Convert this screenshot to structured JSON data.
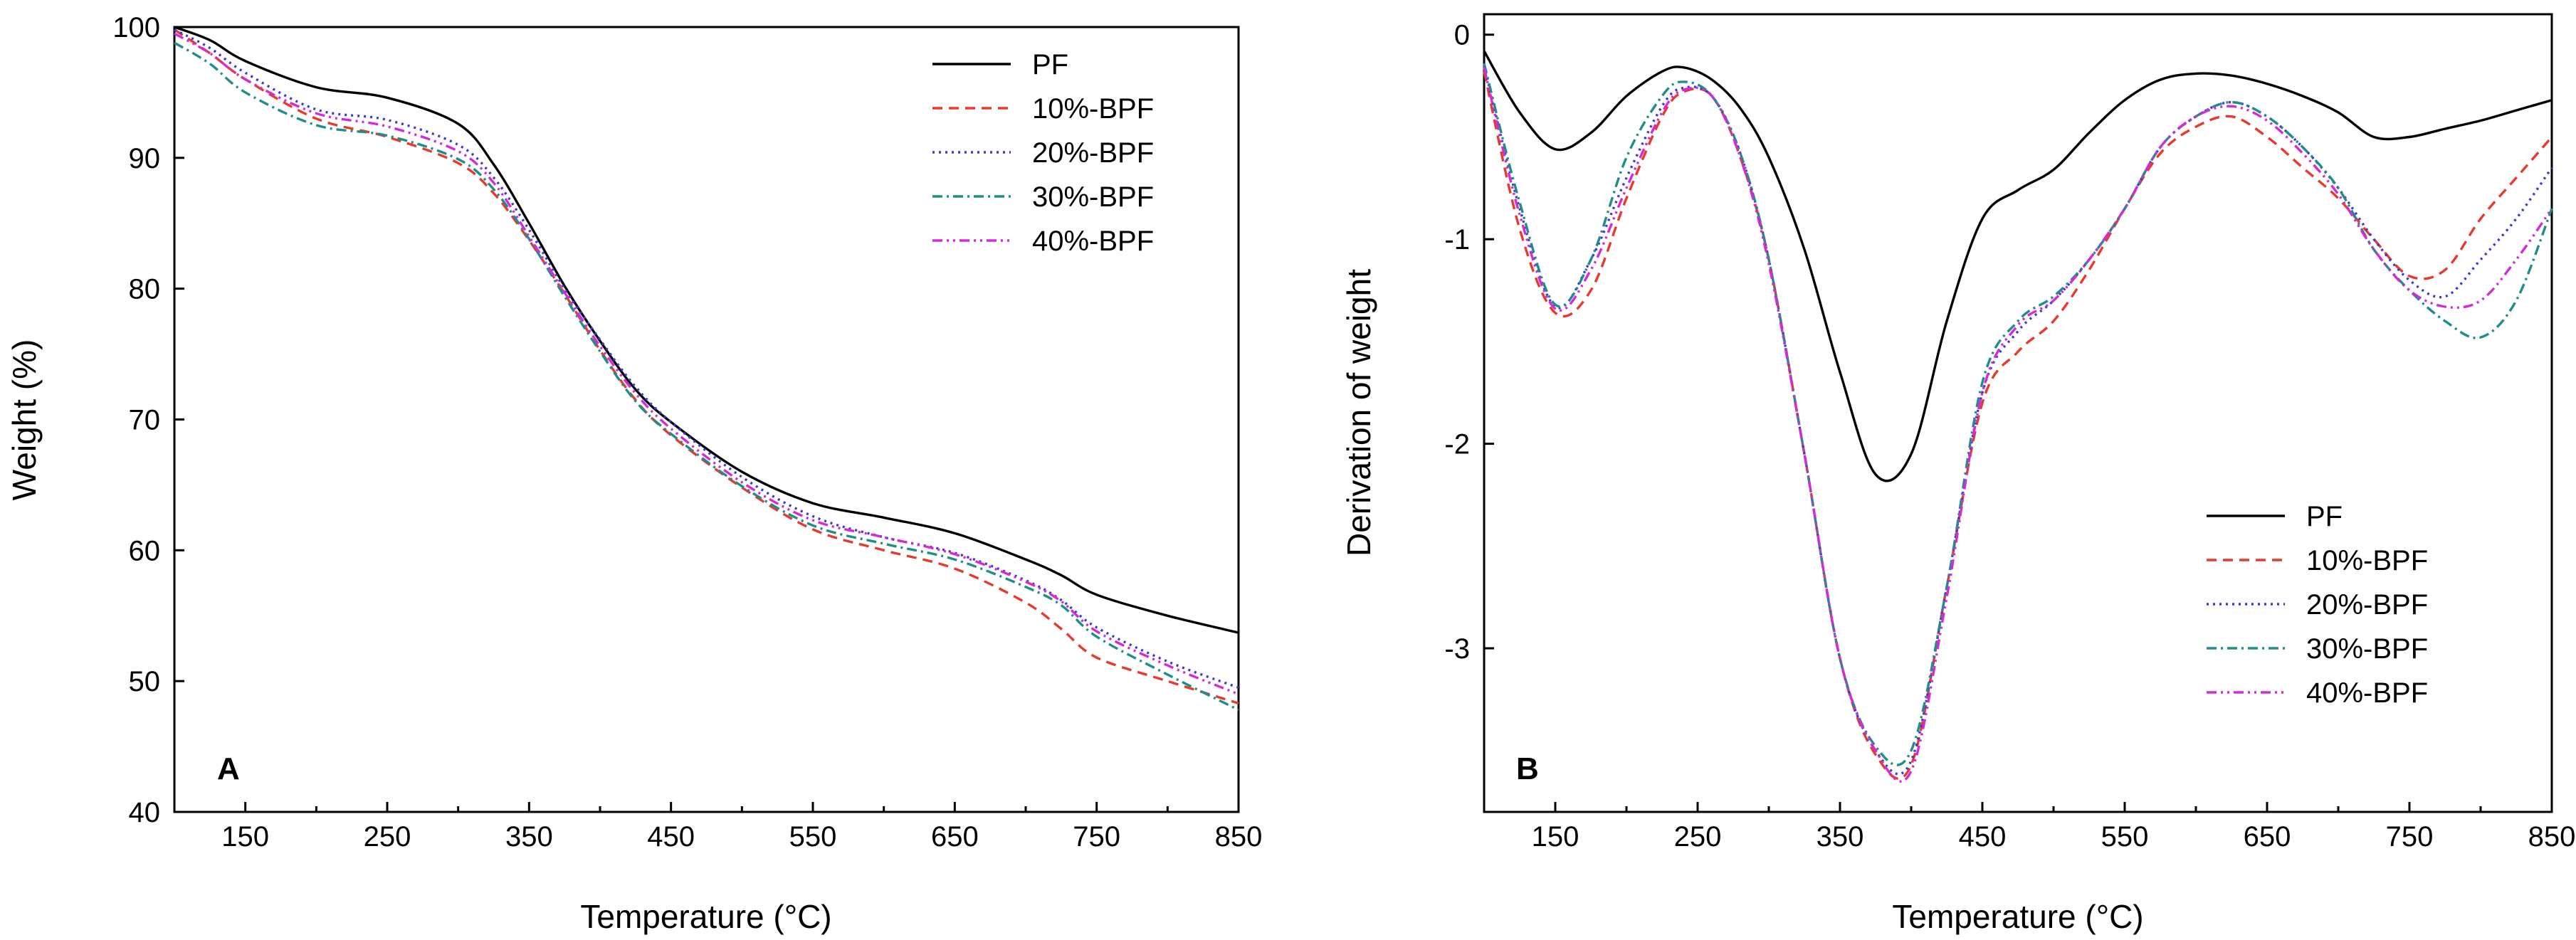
{
  "chart_data": [
    {
      "type": "line",
      "panel": "A",
      "title": "",
      "xlabel": "Temperature (°C)",
      "ylabel": "Weight (%)",
      "xlim": [
        100,
        850
      ],
      "ylim": [
        40,
        100
      ],
      "xticks": [
        150,
        250,
        350,
        450,
        550,
        650,
        750,
        850
      ],
      "yticks": [
        40,
        50,
        60,
        70,
        80,
        90,
        100
      ],
      "legend_position": "top-right",
      "x": [
        100,
        125,
        150,
        200,
        250,
        300,
        325,
        350,
        375,
        400,
        425,
        450,
        500,
        550,
        600,
        650,
        700,
        725,
        750,
        800,
        850
      ],
      "series": [
        {
          "name": "PF",
          "color": "#000000",
          "dash": "solid",
          "values": [
            100,
            99.0,
            97.4,
            95.4,
            94.6,
            92.6,
            89.5,
            85.0,
            80.2,
            76.0,
            72.3,
            69.8,
            66.0,
            63.6,
            62.5,
            61.3,
            59.3,
            58.1,
            56.6,
            55.0,
            53.7
          ]
        },
        {
          "name": "10%-BPF",
          "color": "#e8392c",
          "dash": "dashed",
          "values": [
            99.8,
            98.0,
            96.0,
            93.0,
            91.6,
            89.6,
            87.3,
            83.7,
            79.6,
            75.3,
            71.5,
            68.8,
            64.8,
            61.6,
            60.0,
            58.6,
            56.0,
            54.0,
            51.8,
            50.0,
            48.3
          ]
        },
        {
          "name": "20%-BPF",
          "color": "#3a3ad8",
          "dash": "dotted",
          "values": [
            99.8,
            98.4,
            96.5,
            93.7,
            92.9,
            91.0,
            88.5,
            84.5,
            80.0,
            76.1,
            72.5,
            69.8,
            65.6,
            62.6,
            61.0,
            59.8,
            57.7,
            56.2,
            54.1,
            51.5,
            49.5
          ]
        },
        {
          "name": "30%-BPF",
          "color": "#1f8e8a",
          "dash": "dashdot",
          "values": [
            98.8,
            97.2,
            95.0,
            92.5,
            91.7,
            89.9,
            87.6,
            83.8,
            79.4,
            75.2,
            71.4,
            68.9,
            64.9,
            61.9,
            60.5,
            59.3,
            57.2,
            55.8,
            53.4,
            50.5,
            47.8
          ]
        },
        {
          "name": "40%-BPF",
          "color": "#d62ad6",
          "dash": "dashdotdot",
          "values": [
            99.5,
            98.0,
            96.0,
            93.4,
            92.4,
            90.5,
            88.1,
            84.0,
            79.7,
            75.6,
            72.0,
            69.3,
            65.2,
            62.3,
            61.0,
            59.7,
            57.6,
            56.1,
            53.8,
            51.2,
            49.0
          ]
        }
      ]
    },
    {
      "type": "line",
      "panel": "B",
      "title": "",
      "xlabel": "Temperature (°C)",
      "ylabel": "Derivation of weight",
      "xlim": [
        100,
        850
      ],
      "ylim": [
        -3.8,
        0.1
      ],
      "xticks": [
        150,
        250,
        350,
        450,
        550,
        650,
        750,
        850
      ],
      "yticks": [
        -3,
        -2,
        -1,
        0
      ],
      "legend_position": "bottom-right",
      "x": [
        100,
        125,
        150,
        175,
        200,
        225,
        240,
        260,
        280,
        300,
        325,
        350,
        375,
        400,
        425,
        450,
        475,
        500,
        525,
        550,
        575,
        600,
        625,
        650,
        675,
        700,
        725,
        750,
        775,
        800,
        825,
        850
      ],
      "series": [
        {
          "name": "PF",
          "color": "#000000",
          "dash": "solid",
          "values": [
            -0.08,
            -0.38,
            -0.56,
            -0.48,
            -0.3,
            -0.18,
            -0.16,
            -0.22,
            -0.36,
            -0.6,
            -1.05,
            -1.65,
            -2.15,
            -2.05,
            -1.4,
            -0.9,
            -0.76,
            -0.66,
            -0.48,
            -0.32,
            -0.22,
            -0.19,
            -0.2,
            -0.24,
            -0.3,
            -0.38,
            -0.5,
            -0.5,
            -0.46,
            -0.42,
            -0.37,
            -0.32
          ]
        },
        {
          "name": "10%-BPF",
          "color": "#e8392c",
          "dash": "dashed",
          "values": [
            -0.18,
            -0.95,
            -1.36,
            -1.25,
            -0.8,
            -0.4,
            -0.28,
            -0.3,
            -0.6,
            -1.1,
            -2.05,
            -3.05,
            -3.52,
            -3.57,
            -2.7,
            -1.8,
            -1.55,
            -1.4,
            -1.15,
            -0.85,
            -0.58,
            -0.45,
            -0.4,
            -0.5,
            -0.65,
            -0.8,
            -1.0,
            -1.18,
            -1.15,
            -0.9,
            -0.7,
            -0.5
          ]
        },
        {
          "name": "20%-BPF",
          "color": "#3a3ad8",
          "dash": "dotted",
          "values": [
            -0.15,
            -0.85,
            -1.33,
            -1.1,
            -0.7,
            -0.35,
            -0.26,
            -0.3,
            -0.58,
            -1.1,
            -2.05,
            -3.05,
            -3.5,
            -3.55,
            -2.7,
            -1.75,
            -1.45,
            -1.3,
            -1.1,
            -0.85,
            -0.55,
            -0.4,
            -0.33,
            -0.4,
            -0.55,
            -0.75,
            -1.0,
            -1.2,
            -1.28,
            -1.1,
            -0.9,
            -0.65
          ]
        },
        {
          "name": "30%-BPF",
          "color": "#1f8e8a",
          "dash": "dashdot",
          "values": [
            -0.14,
            -0.82,
            -1.32,
            -1.1,
            -0.6,
            -0.3,
            -0.23,
            -0.3,
            -0.58,
            -1.1,
            -2.05,
            -3.05,
            -3.48,
            -3.5,
            -2.7,
            -1.7,
            -1.4,
            -1.28,
            -1.1,
            -0.85,
            -0.55,
            -0.4,
            -0.33,
            -0.4,
            -0.55,
            -0.75,
            -1.05,
            -1.25,
            -1.4,
            -1.48,
            -1.3,
            -0.85
          ]
        },
        {
          "name": "40%-BPF",
          "color": "#d62ad6",
          "dash": "dashdotdot",
          "values": [
            -0.16,
            -0.88,
            -1.34,
            -1.15,
            -0.75,
            -0.38,
            -0.27,
            -0.3,
            -0.6,
            -1.12,
            -2.05,
            -3.05,
            -3.5,
            -3.6,
            -2.75,
            -1.75,
            -1.42,
            -1.3,
            -1.1,
            -0.85,
            -0.55,
            -0.4,
            -0.35,
            -0.42,
            -0.58,
            -0.78,
            -1.05,
            -1.25,
            -1.33,
            -1.3,
            -1.1,
            -0.85
          ]
        }
      ]
    }
  ]
}
